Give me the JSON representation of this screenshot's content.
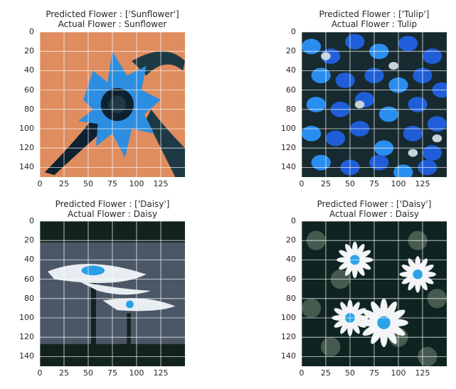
{
  "chart_data": [
    {
      "type": "image",
      "title_line1": "Predicted Flower : ['Sunflower']",
      "title_line2": "Actual Flower : Sunflower",
      "xlim": [
        0,
        150
      ],
      "ylim": [
        150,
        0
      ],
      "xticks": [
        0,
        25,
        50,
        75,
        100,
        125
      ],
      "yticks": [
        0,
        20,
        40,
        60,
        80,
        100,
        120,
        140
      ],
      "grid": true,
      "content": "sunflower",
      "colors": {
        "background": "#df8c5e",
        "main": "#2c8ee0",
        "dark": "#1d3a44",
        "deep": "#0d2230"
      }
    },
    {
      "type": "image",
      "title_line1": "Predicted Flower : ['Tulip']",
      "title_line2": "Actual Flower : Tulip",
      "xlim": [
        0,
        150
      ],
      "ylim": [
        150,
        0
      ],
      "xticks": [
        0,
        25,
        50,
        75,
        100,
        125
      ],
      "yticks": [
        0,
        20,
        40,
        60,
        80,
        100,
        120,
        140
      ],
      "grid": true,
      "content": "tulip",
      "colors": {
        "background": "#172a30",
        "main": "#1f5ed8",
        "bright": "#2a8ef0",
        "light": "#c8d4dc"
      }
    },
    {
      "type": "image",
      "title_line1": "Predicted Flower : ['Daisy']",
      "title_line2": "Actual Flower : Daisy",
      "xlim": [
        0,
        150
      ],
      "ylim": [
        150,
        0
      ],
      "xticks": [
        0,
        25,
        50,
        75,
        100,
        125
      ],
      "yticks": [
        0,
        20,
        40,
        60,
        80,
        100,
        120,
        140
      ],
      "grid": true,
      "content": "daisy-dark",
      "colors": {
        "background": "#11221f",
        "mid": "#4b5766",
        "petal": "#e8edf2",
        "center": "#2a9fe8"
      }
    },
    {
      "type": "image",
      "title_line1": "Predicted Flower : ['Daisy']",
      "title_line2": "Actual Flower : Daisy",
      "xlim": [
        0,
        150
      ],
      "ylim": [
        150,
        0
      ],
      "xticks": [
        0,
        25,
        50,
        75,
        100,
        125
      ],
      "yticks": [
        0,
        20,
        40,
        60,
        80,
        100,
        120,
        140
      ],
      "grid": true,
      "content": "daisy-field",
      "colors": {
        "background": "#0f2420",
        "foliage": "#7d9080",
        "petal": "#f2f4f6",
        "center": "#2aa3e6"
      }
    }
  ]
}
